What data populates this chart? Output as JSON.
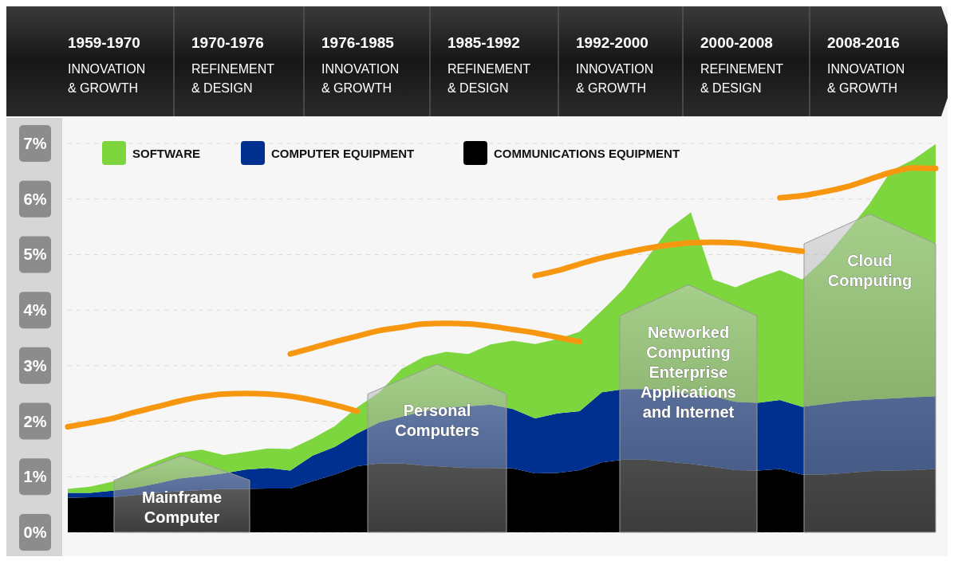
{
  "chart_data": {
    "type": "area",
    "stacked": true,
    "categories": [
      null,
      null,
      null,
      null,
      null,
      null,
      null,
      null,
      null,
      null,
      null,
      null,
      null,
      null,
      null,
      null,
      null,
      null,
      null,
      null,
      null,
      null,
      null,
      null,
      null,
      null,
      null,
      null,
      null,
      null,
      null,
      null,
      null,
      null,
      null,
      null,
      null,
      null,
      null,
      null
    ],
    "series": [
      {
        "name": "COMMUNICATIONS EQUIPMENT",
        "color": "#000000",
        "values": [
          0.62,
          0.63,
          0.63,
          0.67,
          0.71,
          0.74,
          0.76,
          0.78,
          0.78,
          0.79,
          0.79,
          0.92,
          1.04,
          1.19,
          1.24,
          1.24,
          1.2,
          1.18,
          1.16,
          1.16,
          1.15,
          1.06,
          1.07,
          1.12,
          1.26,
          1.31,
          1.31,
          1.27,
          1.23,
          1.18,
          1.12,
          1.11,
          1.14,
          1.04,
          1.04,
          1.07,
          1.1,
          1.11,
          1.12,
          1.14
        ]
      },
      {
        "name": "COMPUTER EQUIPMENT",
        "color": "#00308f",
        "values": [
          0.09,
          0.08,
          0.12,
          0.13,
          0.17,
          0.23,
          0.25,
          0.28,
          0.35,
          0.37,
          0.32,
          0.46,
          0.5,
          0.59,
          0.74,
          0.84,
          0.98,
          1.07,
          1.11,
          1.14,
          1.07,
          0.99,
          1.07,
          1.06,
          1.26,
          1.27,
          1.27,
          1.27,
          1.26,
          1.27,
          1.23,
          1.22,
          1.24,
          1.22,
          1.27,
          1.29,
          1.29,
          1.3,
          1.31,
          1.31
        ]
      },
      {
        "name": "SOFTWARE",
        "color": "#7ed63f",
        "values": [
          0.07,
          0.11,
          0.16,
          0.31,
          0.4,
          0.46,
          0.48,
          0.33,
          0.32,
          0.35,
          0.39,
          0.31,
          0.37,
          0.47,
          0.54,
          0.86,
          0.98,
          1.0,
          0.94,
          1.08,
          1.23,
          1.34,
          1.34,
          1.43,
          1.47,
          1.81,
          2.34,
          2.92,
          3.27,
          2.1,
          2.06,
          2.25,
          2.34,
          2.29,
          2.61,
          3.04,
          3.51,
          4.1,
          4.28,
          4.54
        ]
      },
      {
        "type": "line",
        "color": "#f7960f",
        "values": [
          1.9,
          1.97,
          2.05,
          2.16,
          2.26,
          2.36,
          2.44,
          2.49,
          2.5,
          2.49,
          2.45,
          2.38,
          2.29,
          2.18,
          null,
          null,
          null,
          null,
          null,
          null,
          null,
          null,
          null,
          null,
          null,
          null,
          null,
          null,
          null,
          null,
          null,
          null,
          null,
          null,
          null,
          null,
          null,
          null,
          null,
          null
        ]
      },
      {
        "type": "line",
        "color": "#f7960f",
        "values": [
          null,
          null,
          null,
          null,
          null,
          null,
          null,
          null,
          null,
          null,
          3.21,
          3.32,
          3.43,
          3.53,
          3.63,
          3.69,
          3.75,
          3.76,
          3.75,
          3.71,
          3.65,
          3.59,
          3.51,
          3.43,
          null,
          null,
          null,
          null,
          null,
          null,
          null,
          null,
          null,
          null,
          null,
          null,
          null,
          null,
          null,
          null
        ]
      },
      {
        "type": "line",
        "color": "#f7960f",
        "values": [
          null,
          null,
          null,
          null,
          null,
          null,
          null,
          null,
          null,
          null,
          null,
          null,
          null,
          null,
          null,
          null,
          null,
          null,
          null,
          null,
          null,
          4.62,
          4.71,
          4.83,
          4.94,
          5.03,
          5.11,
          5.17,
          5.21,
          5.22,
          5.21,
          5.17,
          5.11,
          5.06,
          null,
          null,
          null,
          null,
          null,
          null
        ]
      },
      {
        "type": "line",
        "color": "#f7960f",
        "values": [
          null,
          null,
          null,
          null,
          null,
          null,
          null,
          null,
          null,
          null,
          null,
          null,
          null,
          null,
          null,
          null,
          null,
          null,
          null,
          null,
          null,
          null,
          null,
          null,
          null,
          null,
          null,
          null,
          null,
          null,
          null,
          null,
          6.02,
          6.06,
          6.13,
          6.22,
          6.35,
          6.48,
          6.56,
          6.55
        ]
      }
    ],
    "ylim": [
      0,
      7
    ],
    "yticks": [
      {
        "value": 0,
        "label": "0%"
      },
      {
        "value": 1,
        "label": "1%"
      },
      {
        "value": 2,
        "label": "2%"
      },
      {
        "value": 3,
        "label": "3%"
      },
      {
        "value": 4,
        "label": "4%"
      },
      {
        "value": 5,
        "label": "5%"
      },
      {
        "value": 6,
        "label": "6%"
      },
      {
        "value": 7,
        "label": "7%"
      }
    ],
    "grid": "y",
    "legend": "top left",
    "marker": "none",
    "line_style": "solid",
    "annotations": [
      "1959-1970\nINNOVATION\n& GROWTH",
      "1970-1976\nREFINEMENT\n& DESIGN",
      "1976-1985\nINNOVATION\n& GROWTH",
      "1985-1992\nREFINEMENT\n& DESIGN",
      "1992-2000\nINNOVATION\n& GROWTH",
      "2000-2008\nREFINEMENT\n& DESIGN",
      "2008-2016\nINNOVATION\n& GROWTH",
      "Mainframe\nComputer",
      "Personal\nComputers",
      "Networked\nComputing\nEnterprise\nApplications\nand Internet",
      "Cloud\nComputing"
    ]
  }
}
